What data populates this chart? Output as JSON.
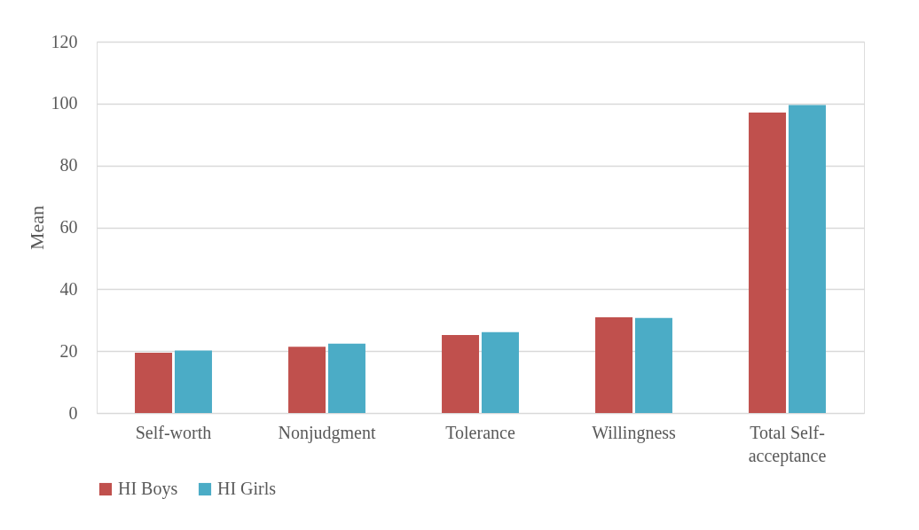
{
  "chart_data": {
    "type": "bar",
    "ylabel": "Mean",
    "categories": [
      "Self-worth",
      "Nonjudgment",
      "Tolerance",
      "Willingness",
      "Total Self-acceptance"
    ],
    "series": [
      {
        "name": "HI Boys",
        "color": "#c0504d",
        "values": [
          19.5,
          21.4,
          25.2,
          30.9,
          97.1
        ]
      },
      {
        "name": "HI Girls",
        "color": "#4bacc6",
        "values": [
          20.2,
          22.4,
          26.1,
          30.7,
          99.5
        ]
      }
    ],
    "ylim": [
      0,
      120
    ],
    "yticks": [
      0,
      20,
      40,
      60,
      80,
      100,
      120
    ],
    "grid": "y",
    "legend": "bottom"
  }
}
